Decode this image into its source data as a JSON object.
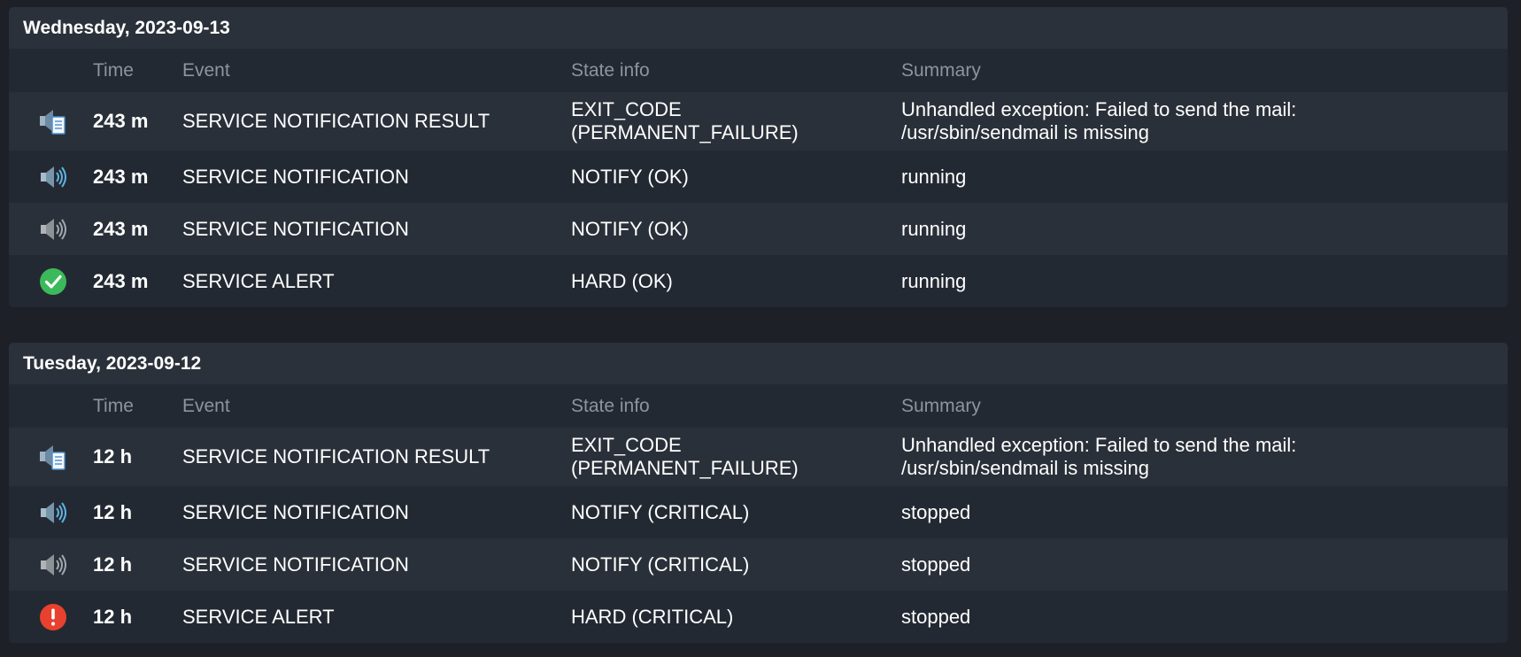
{
  "days": [
    {
      "title": "Wednesday, 2023-09-13",
      "columns": {
        "time": "Time",
        "event": "Event",
        "state": "State info",
        "summary": "Summary"
      },
      "rows": [
        {
          "icon": "notification-result-icon",
          "time": "243 m",
          "event": "SERVICE NOTIFICATION RESULT",
          "state": "EXIT_CODE (PERMANENT_FAILURE)",
          "summary": "Unhandled exception: Failed to send the mail: /usr/sbin/sendmail is missing"
        },
        {
          "icon": "notification-blue-icon",
          "time": "243 m",
          "event": "SERVICE NOTIFICATION",
          "state": "NOTIFY (OK)",
          "summary": "running"
        },
        {
          "icon": "notification-gray-icon",
          "time": "243 m",
          "event": "SERVICE NOTIFICATION",
          "state": "NOTIFY (OK)",
          "summary": "running"
        },
        {
          "icon": "ok-check-icon",
          "time": "243 m",
          "event": "SERVICE ALERT",
          "state": "HARD (OK)",
          "summary": "running"
        }
      ]
    },
    {
      "title": "Tuesday, 2023-09-12",
      "columns": {
        "time": "Time",
        "event": "Event",
        "state": "State info",
        "summary": "Summary"
      },
      "rows": [
        {
          "icon": "notification-result-icon",
          "time": "12 h",
          "event": "SERVICE NOTIFICATION RESULT",
          "state": "EXIT_CODE (PERMANENT_FAILURE)",
          "summary": "Unhandled exception: Failed to send the mail: /usr/sbin/sendmail is missing"
        },
        {
          "icon": "notification-blue-icon",
          "time": "12 h",
          "event": "SERVICE NOTIFICATION",
          "state": "NOTIFY (CRITICAL)",
          "summary": "stopped"
        },
        {
          "icon": "notification-gray-icon",
          "time": "12 h",
          "event": "SERVICE NOTIFICATION",
          "state": "NOTIFY (CRITICAL)",
          "summary": "stopped"
        },
        {
          "icon": "critical-alert-icon",
          "time": "12 h",
          "event": "SERVICE ALERT",
          "state": "HARD (CRITICAL)",
          "summary": "stopped"
        }
      ]
    }
  ],
  "colors": {
    "ok": "#3cb95b",
    "critical": "#e8412f",
    "notify_blue": "#5fb2e0",
    "notify_gray": "#a3a8ae"
  }
}
